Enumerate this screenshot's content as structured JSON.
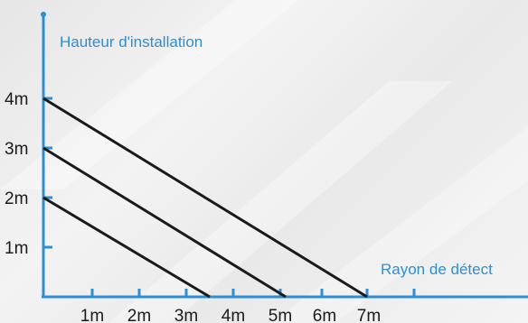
{
  "diagram": {
    "y_axis_label": "Hauteur d'installation",
    "x_axis_label": "Rayon de détect",
    "y_ticks": [
      {
        "value": 1,
        "label": "1m"
      },
      {
        "value": 2,
        "label": "2m"
      },
      {
        "value": 3,
        "label": "3m"
      },
      {
        "value": 4,
        "label": "4m"
      }
    ],
    "x_ticks": [
      {
        "value": 1,
        "label": "1m"
      },
      {
        "value": 2,
        "label": "2m"
      },
      {
        "value": 3,
        "label": "3m"
      },
      {
        "value": 4,
        "label": "4m"
      },
      {
        "value": 5,
        "label": "5m"
      },
      {
        "value": 6,
        "label": "6m"
      },
      {
        "value": 7,
        "label": "7m"
      }
    ],
    "lines": [
      {
        "height": 4,
        "radius": 7
      },
      {
        "height": 3,
        "radius": 5
      },
      {
        "height": 2,
        "radius": 3
      }
    ],
    "colors": {
      "axis": "#2a8fd6",
      "line": "#1a1a1a",
      "tick_text": "#1a1a1a",
      "axis_label": "#2a8fd6"
    }
  }
}
